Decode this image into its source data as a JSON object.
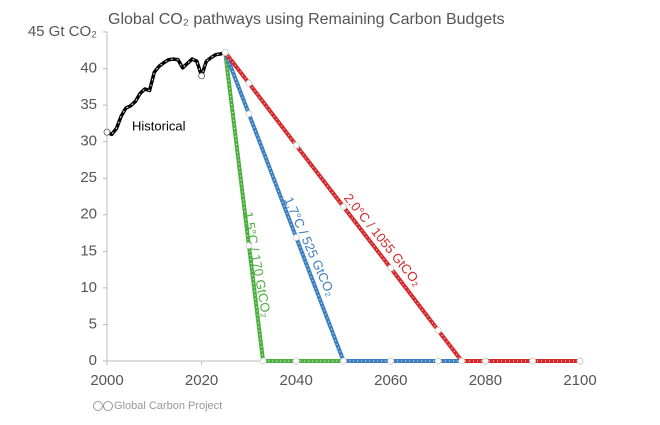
{
  "chart_data": {
    "type": "line",
    "title": "Global CO₂ pathways using Remaining Carbon Budgets",
    "xlim": [
      2000,
      2100
    ],
    "xticks": [
      2000,
      2020,
      2040,
      2060,
      2080,
      2100
    ],
    "ylim": [
      0,
      45
    ],
    "yticks": [
      0,
      5,
      10,
      15,
      20,
      25,
      30,
      35,
      40,
      {
        "value": 45,
        "label": "45 Gt CO₂"
      }
    ],
    "grid": false,
    "series": [
      {
        "name": "Historical",
        "color": "#000000",
        "x": [
          2000,
          2001,
          2002,
          2003,
          2004,
          2005,
          2006,
          2007,
          2008,
          2009,
          2010,
          2011,
          2012,
          2013,
          2014,
          2015,
          2016,
          2017,
          2018,
          2019,
          2020,
          2021,
          2022,
          2023,
          2024,
          2025
        ],
        "values": [
          31.3,
          31.0,
          31.8,
          33.5,
          34.6,
          34.9,
          35.5,
          36.6,
          37.2,
          37.0,
          39.5,
          40.3,
          40.8,
          41.2,
          41.3,
          41.2,
          40.1,
          40.7,
          41.3,
          41.0,
          39.0,
          41.0,
          41.5,
          41.9,
          42.0,
          42.2
        ]
      },
      {
        "name": "1.5°C / 170 GtCO₂",
        "color": "#4caf3f",
        "x": [
          2025,
          2030,
          2033,
          2040,
          2050,
          2060,
          2070,
          2080,
          2090,
          2100
        ],
        "values": [
          42.2,
          15.8,
          0,
          0,
          0,
          0,
          0,
          0,
          0,
          0
        ]
      },
      {
        "name": "1.7°C / 525 GtCO₂",
        "color": "#3b7fc0",
        "x": [
          2025,
          2030,
          2040,
          2050,
          2060,
          2070,
          2080,
          2090,
          2100
        ],
        "values": [
          42.2,
          33.8,
          16.9,
          0,
          0,
          0,
          0,
          0,
          0
        ]
      },
      {
        "name": "2.0°C / 1055 GtCO₂",
        "color": "#d6282b",
        "x": [
          2025,
          2030,
          2040,
          2050,
          2060,
          2070,
          2075,
          2080,
          2090,
          2100
        ],
        "values": [
          42.2,
          38.0,
          29.5,
          21.1,
          12.7,
          4.2,
          0,
          0,
          0,
          0
        ]
      }
    ],
    "source": "Global Carbon Project"
  }
}
